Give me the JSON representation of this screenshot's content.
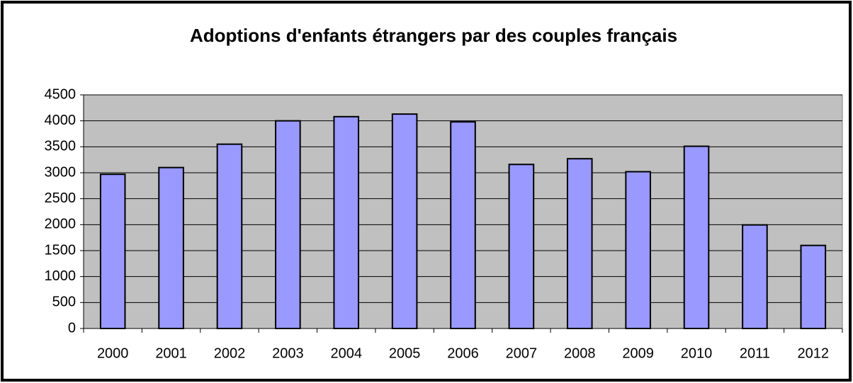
{
  "chart_data": {
    "type": "bar",
    "title": "Adoptions d'enfants étrangers par des couples français",
    "categories": [
      "2000",
      "2001",
      "2002",
      "2003",
      "2004",
      "2005",
      "2006",
      "2007",
      "2008",
      "2009",
      "2010",
      "2011",
      "2012"
    ],
    "values": [
      2970,
      3100,
      3550,
      4000,
      4080,
      4130,
      3980,
      3160,
      3270,
      3020,
      3510,
      1995,
      1600
    ],
    "color": "#9999ff",
    "ylim": [
      0,
      4500
    ],
    "yticks": [
      0,
      500,
      1000,
      1500,
      2000,
      2500,
      3000,
      3500,
      4000,
      4500
    ],
    "grid": true
  }
}
